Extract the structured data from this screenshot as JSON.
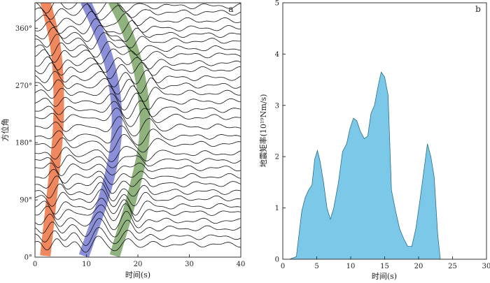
{
  "chart_data": [
    {
      "panel": "a",
      "type": "line",
      "xlabel": "时间(s)",
      "ylabel": "方位角",
      "xlim": [
        0,
        40
      ],
      "ylim": [
        0,
        400
      ],
      "xticks": [
        0,
        10,
        20,
        30,
        40
      ],
      "yticks": [
        0,
        90,
        180,
        270,
        360
      ],
      "ytick_labels": [
        "0°",
        "90°",
        "180°",
        "270°",
        "360°"
      ],
      "trace_count": 32,
      "trace_azimuths": [
        20,
        32,
        45,
        57,
        70,
        80,
        92,
        103,
        115,
        127,
        140,
        152,
        163,
        178,
        190,
        205,
        220,
        232,
        245,
        258,
        270,
        282,
        295,
        305,
        318,
        328,
        340,
        350,
        360,
        372,
        385,
        395
      ],
      "bands": [
        {
          "name": "orange",
          "color": "#f0885f",
          "points": [
            [
              2,
              2
            ],
            [
              3.6,
              120
            ],
            [
              4.8,
              220
            ],
            [
              4.3,
              330
            ],
            [
              2,
              402
            ]
          ]
        },
        {
          "name": "blue",
          "color": "#8a8fd8",
          "points": [
            [
              9.5,
              2
            ],
            [
              14.2,
              110
            ],
            [
              16.3,
              200
            ],
            [
              15.2,
              290
            ],
            [
              12.2,
              360
            ],
            [
              9.8,
              402
            ]
          ]
        },
        {
          "name": "green",
          "color": "#8fb27f",
          "points": [
            [
              15.5,
              2
            ],
            [
              19.5,
              110
            ],
            [
              21.8,
              200
            ],
            [
              20.5,
              290
            ],
            [
              17.8,
              360
            ],
            [
              15.2,
              402
            ]
          ]
        }
      ]
    },
    {
      "panel": "b",
      "type": "area",
      "xlabel": "时间(s)",
      "ylabel": "地震矩率(10¹⁹Nm/s)",
      "xlim": [
        0,
        30
      ],
      "ylim": [
        0,
        5
      ],
      "xticks": [
        0,
        5,
        10,
        15,
        20,
        25,
        30
      ],
      "yticks": [
        0,
        1,
        2,
        3,
        4,
        5
      ],
      "fill_color": "#7cc8e8",
      "x": [
        1,
        2,
        2.8,
        3.3,
        3.8,
        4.3,
        4.7,
        5.1,
        5.5,
        6,
        6.5,
        7,
        7.5,
        8.2,
        8.8,
        9.4,
        9.9,
        10.4,
        10.9,
        11.4,
        12,
        12.5,
        13,
        13.5,
        14,
        14.5,
        15,
        15.5,
        16,
        16.6,
        17.2,
        17.8,
        18.4,
        19,
        19.6,
        20.2,
        20.8,
        21.3,
        21.8,
        22.3,
        22.8,
        23.2
      ],
      "values": [
        0,
        0.05,
        0.95,
        1.2,
        1.35,
        1.45,
        1.95,
        2.12,
        1.9,
        1.5,
        1.0,
        0.78,
        1.0,
        1.5,
        2.1,
        2.25,
        2.55,
        2.75,
        2.7,
        2.5,
        2.35,
        2.4,
        2.85,
        3.0,
        3.35,
        3.65,
        3.55,
        3.2,
        1.35,
        0.95,
        0.6,
        0.4,
        0.25,
        0.25,
        0.6,
        1.15,
        1.75,
        2.25,
        2.0,
        1.6,
        0.5,
        0
      ]
    }
  ]
}
